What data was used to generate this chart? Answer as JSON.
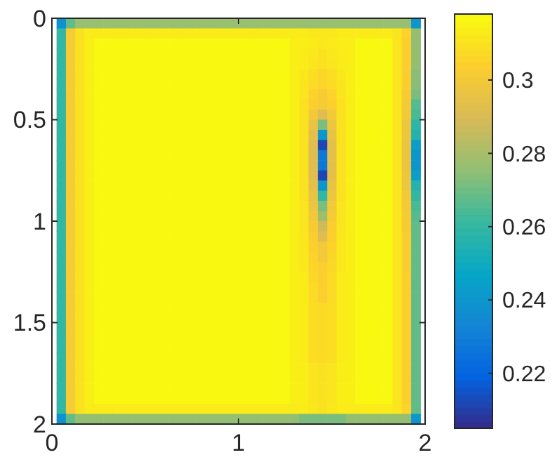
{
  "chart_data": {
    "type": "heatmap",
    "x": [
      0.05,
      0.1,
      0.15,
      0.2,
      0.25,
      0.3,
      0.35,
      0.4,
      0.45,
      0.5,
      0.55,
      0.6,
      0.65,
      0.7,
      0.75,
      0.8,
      0.85,
      0.9,
      0.95,
      1.0,
      1.05,
      1.1,
      1.15,
      1.2,
      1.25,
      1.3,
      1.35,
      1.4,
      1.45,
      1.5,
      1.55,
      1.6,
      1.65,
      1.7,
      1.75,
      1.8,
      1.85,
      1.9,
      1.95
    ],
    "y": [
      0.025,
      0.075,
      0.125,
      0.175,
      0.225,
      0.275,
      0.325,
      0.375,
      0.425,
      0.475,
      0.525,
      0.575,
      0.625,
      0.675,
      0.725,
      0.775,
      0.825,
      0.875,
      0.925,
      0.975,
      1.025,
      1.075,
      1.125,
      1.175,
      1.225,
      1.275,
      1.325,
      1.375,
      1.425,
      1.475,
      1.525,
      1.575,
      1.625,
      1.675,
      1.725,
      1.775,
      1.825,
      1.875,
      1.925,
      1.975
    ],
    "xlim": [
      0,
      2
    ],
    "ylim": [
      2,
      0
    ],
    "xticks": [
      0,
      1,
      2
    ],
    "yticks": [
      0,
      0.5,
      1,
      1.5,
      2
    ],
    "clim": [
      0.205,
      0.318
    ],
    "cticks": [
      0.22,
      0.24,
      0.26,
      0.28,
      0.3
    ],
    "cells": [
      [
        0.238,
        0.268,
        0.277,
        0.277,
        0.277,
        0.277,
        0.277,
        0.277,
        0.277,
        0.277,
        0.277,
        0.277,
        0.277,
        0.277,
        0.277,
        0.277,
        0.277,
        0.277,
        0.277,
        0.277,
        0.277,
        0.277,
        0.277,
        0.277,
        0.277,
        0.277,
        0.277,
        0.277,
        0.277,
        0.277,
        0.277,
        0.277,
        0.277,
        0.277,
        0.277,
        0.277,
        0.277,
        0.277,
        0.24
      ],
      [
        0.26,
        0.302,
        0.31,
        0.313,
        0.313,
        0.313,
        0.313,
        0.313,
        0.313,
        0.313,
        0.313,
        0.313,
        0.313,
        0.313,
        0.313,
        0.313,
        0.313,
        0.313,
        0.313,
        0.313,
        0.313,
        0.313,
        0.313,
        0.313,
        0.313,
        0.313,
        0.313,
        0.312,
        0.312,
        0.312,
        0.313,
        0.313,
        0.313,
        0.313,
        0.313,
        0.313,
        0.311,
        0.305,
        0.276
      ],
      [
        0.26,
        0.302,
        0.31,
        0.314,
        0.317,
        0.317,
        0.317,
        0.317,
        0.317,
        0.317,
        0.317,
        0.317,
        0.317,
        0.317,
        0.317,
        0.317,
        0.317,
        0.317,
        0.317,
        0.317,
        0.317,
        0.317,
        0.317,
        0.317,
        0.317,
        0.314,
        0.314,
        0.313,
        0.312,
        0.313,
        0.314,
        0.314,
        0.317,
        0.317,
        0.317,
        0.317,
        0.311,
        0.304,
        0.276
      ],
      [
        0.26,
        0.302,
        0.31,
        0.314,
        0.317,
        0.317,
        0.317,
        0.317,
        0.317,
        0.317,
        0.317,
        0.317,
        0.317,
        0.317,
        0.317,
        0.317,
        0.317,
        0.317,
        0.317,
        0.317,
        0.317,
        0.317,
        0.317,
        0.317,
        0.317,
        0.314,
        0.313,
        0.312,
        0.31,
        0.312,
        0.313,
        0.314,
        0.317,
        0.317,
        0.317,
        0.317,
        0.311,
        0.304,
        0.276
      ],
      [
        0.26,
        0.302,
        0.31,
        0.314,
        0.317,
        0.317,
        0.317,
        0.317,
        0.317,
        0.317,
        0.317,
        0.317,
        0.317,
        0.317,
        0.317,
        0.317,
        0.317,
        0.317,
        0.317,
        0.317,
        0.317,
        0.317,
        0.317,
        0.317,
        0.317,
        0.314,
        0.313,
        0.311,
        0.31,
        0.311,
        0.313,
        0.314,
        0.317,
        0.317,
        0.317,
        0.317,
        0.311,
        0.304,
        0.276
      ],
      [
        0.26,
        0.302,
        0.31,
        0.314,
        0.317,
        0.317,
        0.317,
        0.317,
        0.317,
        0.317,
        0.317,
        0.317,
        0.317,
        0.317,
        0.317,
        0.317,
        0.317,
        0.317,
        0.317,
        0.317,
        0.317,
        0.317,
        0.317,
        0.317,
        0.317,
        0.314,
        0.312,
        0.309,
        0.306,
        0.309,
        0.312,
        0.314,
        0.317,
        0.317,
        0.317,
        0.317,
        0.311,
        0.303,
        0.274
      ],
      [
        0.26,
        0.302,
        0.31,
        0.314,
        0.317,
        0.317,
        0.317,
        0.317,
        0.317,
        0.317,
        0.317,
        0.317,
        0.317,
        0.317,
        0.317,
        0.317,
        0.317,
        0.317,
        0.317,
        0.317,
        0.317,
        0.317,
        0.317,
        0.317,
        0.317,
        0.314,
        0.311,
        0.308,
        0.306,
        0.308,
        0.311,
        0.314,
        0.317,
        0.317,
        0.317,
        0.317,
        0.311,
        0.303,
        0.274
      ],
      [
        0.26,
        0.302,
        0.31,
        0.314,
        0.317,
        0.317,
        0.317,
        0.317,
        0.317,
        0.317,
        0.317,
        0.317,
        0.317,
        0.317,
        0.317,
        0.317,
        0.317,
        0.317,
        0.317,
        0.317,
        0.317,
        0.317,
        0.317,
        0.317,
        0.317,
        0.314,
        0.311,
        0.305,
        0.302,
        0.305,
        0.311,
        0.314,
        0.317,
        0.317,
        0.317,
        0.317,
        0.311,
        0.302,
        0.272
      ],
      [
        0.26,
        0.302,
        0.31,
        0.314,
        0.317,
        0.317,
        0.317,
        0.317,
        0.317,
        0.317,
        0.317,
        0.317,
        0.317,
        0.317,
        0.317,
        0.317,
        0.317,
        0.317,
        0.317,
        0.317,
        0.317,
        0.317,
        0.317,
        0.317,
        0.317,
        0.314,
        0.31,
        0.304,
        0.302,
        0.304,
        0.31,
        0.314,
        0.317,
        0.317,
        0.317,
        0.317,
        0.311,
        0.301,
        0.266
      ],
      [
        0.26,
        0.302,
        0.31,
        0.314,
        0.317,
        0.317,
        0.317,
        0.317,
        0.317,
        0.317,
        0.317,
        0.317,
        0.317,
        0.317,
        0.317,
        0.317,
        0.317,
        0.317,
        0.317,
        0.317,
        0.317,
        0.317,
        0.317,
        0.317,
        0.317,
        0.314,
        0.31,
        0.3,
        0.292,
        0.3,
        0.31,
        0.314,
        0.317,
        0.317,
        0.317,
        0.317,
        0.311,
        0.3,
        0.264
      ],
      [
        0.26,
        0.302,
        0.31,
        0.314,
        0.317,
        0.317,
        0.317,
        0.317,
        0.317,
        0.317,
        0.317,
        0.317,
        0.317,
        0.317,
        0.317,
        0.317,
        0.317,
        0.317,
        0.317,
        0.317,
        0.317,
        0.317,
        0.317,
        0.317,
        0.317,
        0.314,
        0.31,
        0.296,
        0.272,
        0.298,
        0.31,
        0.314,
        0.317,
        0.317,
        0.317,
        0.317,
        0.311,
        0.298,
        0.258
      ],
      [
        0.26,
        0.302,
        0.31,
        0.314,
        0.317,
        0.317,
        0.317,
        0.317,
        0.317,
        0.317,
        0.317,
        0.317,
        0.317,
        0.317,
        0.317,
        0.317,
        0.317,
        0.317,
        0.317,
        0.317,
        0.317,
        0.317,
        0.317,
        0.317,
        0.317,
        0.314,
        0.31,
        0.294,
        0.24,
        0.296,
        0.31,
        0.314,
        0.317,
        0.317,
        0.317,
        0.317,
        0.311,
        0.298,
        0.256
      ],
      [
        0.26,
        0.302,
        0.31,
        0.314,
        0.317,
        0.317,
        0.317,
        0.317,
        0.317,
        0.317,
        0.317,
        0.317,
        0.317,
        0.317,
        0.317,
        0.317,
        0.317,
        0.317,
        0.317,
        0.317,
        0.317,
        0.317,
        0.317,
        0.317,
        0.317,
        0.314,
        0.31,
        0.292,
        0.212,
        0.294,
        0.31,
        0.314,
        0.317,
        0.317,
        0.317,
        0.317,
        0.311,
        0.297,
        0.244
      ],
      [
        0.26,
        0.302,
        0.31,
        0.314,
        0.317,
        0.317,
        0.317,
        0.317,
        0.317,
        0.317,
        0.317,
        0.317,
        0.317,
        0.317,
        0.317,
        0.317,
        0.317,
        0.317,
        0.317,
        0.317,
        0.317,
        0.317,
        0.317,
        0.317,
        0.317,
        0.314,
        0.31,
        0.292,
        0.228,
        0.294,
        0.31,
        0.314,
        0.317,
        0.317,
        0.317,
        0.317,
        0.311,
        0.297,
        0.24
      ],
      [
        0.26,
        0.302,
        0.31,
        0.314,
        0.317,
        0.317,
        0.317,
        0.317,
        0.317,
        0.317,
        0.317,
        0.317,
        0.317,
        0.317,
        0.317,
        0.317,
        0.317,
        0.317,
        0.317,
        0.317,
        0.317,
        0.317,
        0.317,
        0.317,
        0.317,
        0.314,
        0.31,
        0.292,
        0.228,
        0.294,
        0.31,
        0.314,
        0.317,
        0.317,
        0.317,
        0.317,
        0.311,
        0.297,
        0.24
      ],
      [
        0.26,
        0.302,
        0.31,
        0.314,
        0.317,
        0.317,
        0.317,
        0.317,
        0.317,
        0.317,
        0.317,
        0.317,
        0.317,
        0.317,
        0.317,
        0.317,
        0.317,
        0.317,
        0.317,
        0.317,
        0.317,
        0.317,
        0.317,
        0.317,
        0.317,
        0.314,
        0.31,
        0.292,
        0.212,
        0.294,
        0.31,
        0.314,
        0.317,
        0.317,
        0.317,
        0.317,
        0.311,
        0.298,
        0.244
      ],
      [
        0.26,
        0.302,
        0.31,
        0.314,
        0.317,
        0.317,
        0.317,
        0.317,
        0.317,
        0.317,
        0.317,
        0.317,
        0.317,
        0.317,
        0.317,
        0.317,
        0.317,
        0.317,
        0.317,
        0.317,
        0.317,
        0.317,
        0.317,
        0.317,
        0.317,
        0.314,
        0.31,
        0.294,
        0.24,
        0.296,
        0.31,
        0.314,
        0.317,
        0.317,
        0.317,
        0.317,
        0.311,
        0.298,
        0.256
      ],
      [
        0.26,
        0.302,
        0.31,
        0.314,
        0.317,
        0.317,
        0.317,
        0.317,
        0.317,
        0.317,
        0.317,
        0.317,
        0.317,
        0.317,
        0.317,
        0.317,
        0.317,
        0.317,
        0.317,
        0.317,
        0.317,
        0.317,
        0.317,
        0.317,
        0.317,
        0.314,
        0.31,
        0.296,
        0.26,
        0.298,
        0.31,
        0.314,
        0.317,
        0.317,
        0.317,
        0.317,
        0.311,
        0.3,
        0.26
      ],
      [
        0.26,
        0.302,
        0.31,
        0.314,
        0.317,
        0.317,
        0.317,
        0.317,
        0.317,
        0.317,
        0.317,
        0.317,
        0.317,
        0.317,
        0.317,
        0.317,
        0.317,
        0.317,
        0.317,
        0.317,
        0.317,
        0.317,
        0.317,
        0.317,
        0.317,
        0.314,
        0.311,
        0.298,
        0.272,
        0.3,
        0.311,
        0.314,
        0.317,
        0.317,
        0.317,
        0.317,
        0.311,
        0.301,
        0.264
      ],
      [
        0.26,
        0.302,
        0.31,
        0.314,
        0.317,
        0.317,
        0.317,
        0.317,
        0.317,
        0.317,
        0.317,
        0.317,
        0.317,
        0.317,
        0.317,
        0.317,
        0.317,
        0.317,
        0.317,
        0.317,
        0.317,
        0.317,
        0.317,
        0.317,
        0.317,
        0.314,
        0.311,
        0.3,
        0.278,
        0.302,
        0.311,
        0.314,
        0.317,
        0.317,
        0.317,
        0.317,
        0.311,
        0.302,
        0.266
      ],
      [
        0.26,
        0.302,
        0.31,
        0.314,
        0.317,
        0.317,
        0.317,
        0.317,
        0.317,
        0.317,
        0.317,
        0.317,
        0.317,
        0.317,
        0.317,
        0.317,
        0.317,
        0.317,
        0.317,
        0.317,
        0.317,
        0.317,
        0.317,
        0.317,
        0.317,
        0.314,
        0.311,
        0.302,
        0.288,
        0.303,
        0.311,
        0.314,
        0.317,
        0.317,
        0.317,
        0.317,
        0.311,
        0.302,
        0.268
      ],
      [
        0.26,
        0.302,
        0.31,
        0.314,
        0.317,
        0.317,
        0.317,
        0.317,
        0.317,
        0.317,
        0.317,
        0.317,
        0.317,
        0.317,
        0.317,
        0.317,
        0.317,
        0.317,
        0.317,
        0.317,
        0.317,
        0.317,
        0.317,
        0.317,
        0.317,
        0.314,
        0.312,
        0.303,
        0.292,
        0.304,
        0.312,
        0.314,
        0.317,
        0.317,
        0.317,
        0.317,
        0.311,
        0.303,
        0.268
      ],
      [
        0.26,
        0.302,
        0.31,
        0.314,
        0.317,
        0.317,
        0.317,
        0.317,
        0.317,
        0.317,
        0.317,
        0.317,
        0.317,
        0.317,
        0.317,
        0.317,
        0.317,
        0.317,
        0.317,
        0.317,
        0.317,
        0.317,
        0.317,
        0.317,
        0.317,
        0.314,
        0.312,
        0.304,
        0.3,
        0.305,
        0.312,
        0.314,
        0.317,
        0.317,
        0.317,
        0.317,
        0.311,
        0.303,
        0.268
      ],
      [
        0.26,
        0.302,
        0.31,
        0.314,
        0.317,
        0.317,
        0.317,
        0.317,
        0.317,
        0.317,
        0.317,
        0.317,
        0.317,
        0.317,
        0.317,
        0.317,
        0.317,
        0.317,
        0.317,
        0.317,
        0.317,
        0.317,
        0.317,
        0.317,
        0.317,
        0.314,
        0.312,
        0.305,
        0.3,
        0.306,
        0.312,
        0.314,
        0.317,
        0.317,
        0.317,
        0.317,
        0.311,
        0.303,
        0.268
      ],
      [
        0.26,
        0.302,
        0.31,
        0.314,
        0.317,
        0.317,
        0.317,
        0.317,
        0.317,
        0.317,
        0.317,
        0.317,
        0.317,
        0.317,
        0.317,
        0.317,
        0.317,
        0.317,
        0.317,
        0.317,
        0.317,
        0.317,
        0.317,
        0.317,
        0.317,
        0.314,
        0.312,
        0.306,
        0.304,
        0.307,
        0.312,
        0.314,
        0.317,
        0.317,
        0.317,
        0.317,
        0.311,
        0.303,
        0.268
      ],
      [
        0.26,
        0.302,
        0.31,
        0.314,
        0.317,
        0.317,
        0.317,
        0.317,
        0.317,
        0.317,
        0.317,
        0.317,
        0.317,
        0.317,
        0.317,
        0.317,
        0.317,
        0.317,
        0.317,
        0.317,
        0.317,
        0.317,
        0.317,
        0.317,
        0.317,
        0.314,
        0.313,
        0.307,
        0.304,
        0.308,
        0.313,
        0.314,
        0.317,
        0.317,
        0.317,
        0.317,
        0.311,
        0.304,
        0.268
      ],
      [
        0.26,
        0.302,
        0.31,
        0.314,
        0.317,
        0.317,
        0.317,
        0.317,
        0.317,
        0.317,
        0.317,
        0.317,
        0.317,
        0.317,
        0.317,
        0.317,
        0.317,
        0.317,
        0.317,
        0.317,
        0.317,
        0.317,
        0.317,
        0.317,
        0.317,
        0.314,
        0.313,
        0.308,
        0.304,
        0.308,
        0.313,
        0.314,
        0.317,
        0.317,
        0.317,
        0.317,
        0.311,
        0.304,
        0.268
      ],
      [
        0.26,
        0.302,
        0.31,
        0.314,
        0.317,
        0.317,
        0.317,
        0.317,
        0.317,
        0.317,
        0.317,
        0.317,
        0.317,
        0.317,
        0.317,
        0.317,
        0.317,
        0.317,
        0.317,
        0.317,
        0.317,
        0.317,
        0.317,
        0.317,
        0.317,
        0.314,
        0.313,
        0.308,
        0.304,
        0.308,
        0.313,
        0.314,
        0.317,
        0.317,
        0.317,
        0.317,
        0.311,
        0.304,
        0.268
      ],
      [
        0.26,
        0.302,
        0.31,
        0.314,
        0.317,
        0.317,
        0.317,
        0.317,
        0.317,
        0.317,
        0.317,
        0.317,
        0.317,
        0.317,
        0.317,
        0.317,
        0.317,
        0.317,
        0.317,
        0.317,
        0.317,
        0.317,
        0.317,
        0.317,
        0.317,
        0.314,
        0.313,
        0.309,
        0.308,
        0.309,
        0.313,
        0.314,
        0.317,
        0.317,
        0.317,
        0.317,
        0.311,
        0.304,
        0.268
      ],
      [
        0.26,
        0.302,
        0.31,
        0.314,
        0.317,
        0.317,
        0.317,
        0.317,
        0.317,
        0.317,
        0.317,
        0.317,
        0.317,
        0.317,
        0.317,
        0.317,
        0.317,
        0.317,
        0.317,
        0.317,
        0.317,
        0.317,
        0.317,
        0.317,
        0.317,
        0.314,
        0.313,
        0.309,
        0.308,
        0.309,
        0.313,
        0.314,
        0.317,
        0.317,
        0.317,
        0.317,
        0.311,
        0.304,
        0.268
      ],
      [
        0.26,
        0.302,
        0.31,
        0.314,
        0.317,
        0.317,
        0.317,
        0.317,
        0.317,
        0.317,
        0.317,
        0.317,
        0.317,
        0.317,
        0.317,
        0.317,
        0.317,
        0.317,
        0.317,
        0.317,
        0.317,
        0.317,
        0.317,
        0.317,
        0.317,
        0.314,
        0.313,
        0.309,
        0.308,
        0.309,
        0.313,
        0.314,
        0.317,
        0.317,
        0.317,
        0.317,
        0.311,
        0.304,
        0.268
      ],
      [
        0.26,
        0.302,
        0.31,
        0.314,
        0.317,
        0.317,
        0.317,
        0.317,
        0.317,
        0.317,
        0.317,
        0.317,
        0.317,
        0.317,
        0.317,
        0.317,
        0.317,
        0.317,
        0.317,
        0.317,
        0.317,
        0.317,
        0.317,
        0.317,
        0.317,
        0.314,
        0.313,
        0.309,
        0.308,
        0.309,
        0.313,
        0.314,
        0.317,
        0.317,
        0.317,
        0.317,
        0.311,
        0.304,
        0.268
      ],
      [
        0.26,
        0.302,
        0.31,
        0.314,
        0.317,
        0.317,
        0.317,
        0.317,
        0.317,
        0.317,
        0.317,
        0.317,
        0.317,
        0.317,
        0.317,
        0.317,
        0.317,
        0.317,
        0.317,
        0.317,
        0.317,
        0.317,
        0.317,
        0.317,
        0.317,
        0.314,
        0.313,
        0.309,
        0.308,
        0.309,
        0.313,
        0.314,
        0.317,
        0.317,
        0.317,
        0.317,
        0.311,
        0.304,
        0.268
      ],
      [
        0.26,
        0.302,
        0.31,
        0.314,
        0.317,
        0.317,
        0.317,
        0.317,
        0.317,
        0.317,
        0.317,
        0.317,
        0.317,
        0.317,
        0.317,
        0.317,
        0.317,
        0.317,
        0.317,
        0.317,
        0.317,
        0.317,
        0.317,
        0.317,
        0.317,
        0.314,
        0.313,
        0.309,
        0.308,
        0.309,
        0.313,
        0.314,
        0.317,
        0.317,
        0.317,
        0.317,
        0.311,
        0.304,
        0.268
      ],
      [
        0.26,
        0.302,
        0.31,
        0.314,
        0.317,
        0.317,
        0.317,
        0.317,
        0.317,
        0.317,
        0.317,
        0.317,
        0.317,
        0.317,
        0.317,
        0.317,
        0.317,
        0.317,
        0.317,
        0.317,
        0.317,
        0.317,
        0.317,
        0.317,
        0.317,
        0.314,
        0.314,
        0.311,
        0.31,
        0.311,
        0.314,
        0.314,
        0.317,
        0.317,
        0.317,
        0.317,
        0.311,
        0.304,
        0.268
      ],
      [
        0.26,
        0.302,
        0.31,
        0.314,
        0.317,
        0.317,
        0.317,
        0.317,
        0.317,
        0.317,
        0.317,
        0.317,
        0.317,
        0.317,
        0.317,
        0.317,
        0.317,
        0.317,
        0.317,
        0.317,
        0.317,
        0.317,
        0.317,
        0.317,
        0.317,
        0.314,
        0.314,
        0.311,
        0.31,
        0.311,
        0.314,
        0.314,
        0.317,
        0.317,
        0.317,
        0.317,
        0.311,
        0.304,
        0.268
      ],
      [
        0.26,
        0.302,
        0.31,
        0.314,
        0.317,
        0.317,
        0.317,
        0.317,
        0.317,
        0.317,
        0.317,
        0.317,
        0.317,
        0.317,
        0.317,
        0.317,
        0.317,
        0.317,
        0.317,
        0.317,
        0.317,
        0.317,
        0.317,
        0.317,
        0.317,
        0.314,
        0.314,
        0.311,
        0.31,
        0.311,
        0.314,
        0.314,
        0.317,
        0.317,
        0.317,
        0.317,
        0.311,
        0.304,
        0.268
      ],
      [
        0.26,
        0.302,
        0.31,
        0.314,
        0.317,
        0.317,
        0.317,
        0.317,
        0.317,
        0.317,
        0.317,
        0.317,
        0.317,
        0.317,
        0.317,
        0.317,
        0.317,
        0.317,
        0.317,
        0.317,
        0.317,
        0.317,
        0.317,
        0.317,
        0.317,
        0.314,
        0.314,
        0.311,
        0.31,
        0.311,
        0.314,
        0.314,
        0.317,
        0.317,
        0.317,
        0.317,
        0.311,
        0.304,
        0.268
      ],
      [
        0.26,
        0.302,
        0.31,
        0.313,
        0.313,
        0.313,
        0.313,
        0.313,
        0.313,
        0.313,
        0.313,
        0.313,
        0.313,
        0.313,
        0.313,
        0.313,
        0.313,
        0.313,
        0.313,
        0.313,
        0.313,
        0.313,
        0.313,
        0.313,
        0.313,
        0.313,
        0.313,
        0.312,
        0.31,
        0.312,
        0.313,
        0.313,
        0.313,
        0.313,
        0.313,
        0.313,
        0.311,
        0.305,
        0.268
      ],
      [
        0.238,
        0.268,
        0.276,
        0.276,
        0.276,
        0.276,
        0.276,
        0.276,
        0.276,
        0.276,
        0.276,
        0.276,
        0.276,
        0.276,
        0.276,
        0.276,
        0.276,
        0.276,
        0.276,
        0.276,
        0.276,
        0.276,
        0.276,
        0.276,
        0.276,
        0.276,
        0.272,
        0.272,
        0.272,
        0.272,
        0.272,
        0.276,
        0.276,
        0.276,
        0.276,
        0.276,
        0.276,
        0.276,
        0.24
      ]
    ]
  }
}
